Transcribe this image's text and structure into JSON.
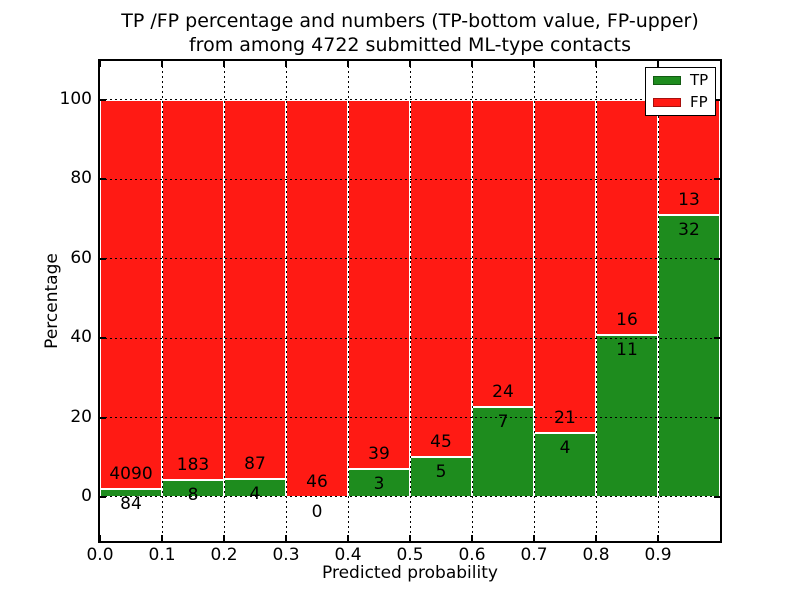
{
  "figure": {
    "background": "#ffffff",
    "frame_color": "#000000"
  },
  "chart_data": {
    "type": "bar",
    "stacked": true,
    "normalized": "percent_within_bin",
    "title_lines": [
      "TP /FP percentage and numbers (TP-bottom value, FP-upper)",
      "from among 4722 submitted ML-type contacts"
    ],
    "xlabel": "Predicted probability",
    "ylabel": "Percentage",
    "total_contacts": 4722,
    "bins": [
      "0.0-0.1",
      "0.1-0.2",
      "0.2-0.3",
      "0.3-0.4",
      "0.4-0.5",
      "0.5-0.6",
      "0.6-0.7",
      "0.7-0.8",
      "0.8-0.9",
      "0.9-1.0"
    ],
    "series": [
      {
        "name": "TP",
        "color": "#1e8c1e",
        "counts": [
          84,
          8,
          4,
          0,
          3,
          5,
          7,
          4,
          11,
          32
        ]
      },
      {
        "name": "FP",
        "color": "#ff1a14",
        "counts": [
          4090,
          183,
          87,
          46,
          39,
          45,
          24,
          21,
          16,
          13
        ]
      }
    ],
    "tp_percent_of_bin": [
      2.01,
      4.19,
      4.4,
      0,
      7.14,
      10.0,
      22.58,
      16.0,
      40.74,
      71.11
    ],
    "bar_edge_color": "#ffffff",
    "xlim": [
      0.0,
      1.0
    ],
    "ylim": [
      -11.1,
      109.8
    ],
    "xticks": [
      0.0,
      0.1,
      0.2,
      0.3,
      0.4,
      0.5,
      0.6,
      0.7,
      0.8,
      0.9
    ],
    "xtick_labels": [
      "0.0",
      "0.1",
      "0.2",
      "0.3",
      "0.4",
      "0.5",
      "0.6",
      "0.7",
      "0.8",
      "0.9"
    ],
    "yticks": [
      0,
      20,
      40,
      60,
      80,
      100
    ],
    "ytick_labels": [
      "0",
      "20",
      "40",
      "60",
      "80",
      "100"
    ],
    "grid": {
      "visible": true,
      "style": "dotted",
      "color": "#000000"
    },
    "legend": {
      "position": "upper right",
      "entries": [
        {
          "label": "TP",
          "color": "#1e8c1e"
        },
        {
          "label": "FP",
          "color": "#ff1a14"
        }
      ]
    }
  }
}
